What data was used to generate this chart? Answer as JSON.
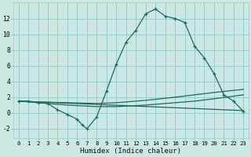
{
  "xlabel": "Humidex (Indice chaleur)",
  "ylabel": "",
  "bg_color": "#cce8e5",
  "grid_color": "#99ccc8",
  "line_color": "#1a6b5a",
  "xlim": [
    -0.5,
    23.5
  ],
  "ylim": [
    -3.2,
    14.0
  ],
  "yticks": [
    -2,
    0,
    2,
    4,
    6,
    8,
    10,
    12
  ],
  "xticks": [
    0,
    1,
    2,
    3,
    4,
    5,
    6,
    7,
    8,
    9,
    10,
    11,
    12,
    13,
    14,
    15,
    16,
    17,
    18,
    19,
    20,
    21,
    22,
    23
  ],
  "main_x": [
    0,
    1,
    2,
    3,
    4,
    5,
    6,
    6.5,
    7,
    8,
    9,
    10,
    11,
    12,
    13,
    14,
    15,
    16,
    17,
    18,
    19,
    20,
    21,
    22,
    23
  ],
  "main_y": [
    1.5,
    1.5,
    1.3,
    1.2,
    0.4,
    -0.2,
    -0.8,
    -1.5,
    -2.0,
    -0.5,
    2.8,
    6.2,
    9.0,
    10.5,
    12.6,
    13.2,
    12.3,
    12.0,
    11.5,
    8.5,
    7.0,
    5.0,
    2.3,
    1.5,
    0.2
  ],
  "line2_x": [
    0,
    2,
    5,
    8,
    10,
    13,
    16,
    18,
    20,
    23
  ],
  "line2_y": [
    1.5,
    1.4,
    1.3,
    1.2,
    1.3,
    1.6,
    2.0,
    2.3,
    2.6,
    3.0
  ],
  "line3_x": [
    0,
    2,
    5,
    8,
    10,
    13,
    16,
    18,
    20,
    23
  ],
  "line3_y": [
    1.5,
    1.3,
    1.0,
    0.8,
    0.8,
    1.0,
    1.3,
    1.5,
    1.8,
    2.3
  ],
  "line4_x": [
    0,
    23
  ],
  "line4_y": [
    1.5,
    0.3
  ]
}
